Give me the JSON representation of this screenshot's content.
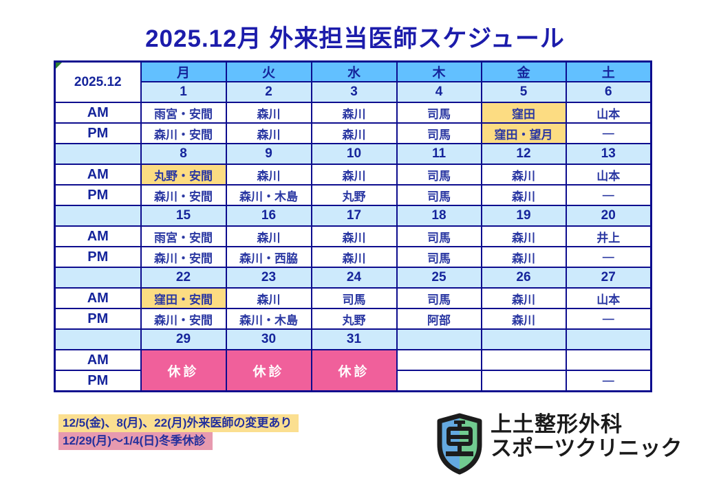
{
  "title": "2025.12月 外来担当医師スケジュール",
  "schedule": {
    "month_label": "2025.12",
    "day_headers": [
      "月",
      "火",
      "水",
      "木",
      "金",
      "土"
    ],
    "row_labels": {
      "am": "AM",
      "pm": "PM"
    },
    "closed_label": "休診",
    "weeks": [
      {
        "dates": [
          "1",
          "2",
          "3",
          "4",
          "5",
          "6"
        ],
        "am": [
          "雨宮・安間",
          "森川",
          "森川",
          "司馬",
          "窪田",
          "山本"
        ],
        "pm": [
          "森川・安間",
          "森川",
          "森川",
          "司馬",
          "窪田・望月",
          "―"
        ],
        "am_highlight": [
          4
        ],
        "pm_highlight": [
          4
        ]
      },
      {
        "dates": [
          "8",
          "9",
          "10",
          "11",
          "12",
          "13"
        ],
        "am": [
          "丸野・安間",
          "森川",
          "森川",
          "司馬",
          "森川",
          "山本"
        ],
        "pm": [
          "森川・安間",
          "森川・木島",
          "丸野",
          "司馬",
          "森川",
          "―"
        ],
        "am_highlight": [
          0
        ],
        "pm_highlight": []
      },
      {
        "dates": [
          "15",
          "16",
          "17",
          "18",
          "19",
          "20"
        ],
        "am": [
          "雨宮・安間",
          "森川",
          "森川",
          "司馬",
          "森川",
          "井上"
        ],
        "pm": [
          "森川・安間",
          "森川・西脇",
          "森川",
          "司馬",
          "森川",
          "―"
        ],
        "am_highlight": [],
        "pm_highlight": []
      },
      {
        "dates": [
          "22",
          "23",
          "24",
          "25",
          "26",
          "27"
        ],
        "am": [
          "窪田・安間",
          "森川",
          "司馬",
          "司馬",
          "森川",
          "山本"
        ],
        "pm": [
          "森川・安間",
          "森川・木島",
          "丸野",
          "阿部",
          "森川",
          "―"
        ],
        "am_highlight": [
          0
        ],
        "pm_highlight": []
      },
      {
        "dates": [
          "29",
          "30",
          "31",
          "",
          "",
          ""
        ],
        "closed_columns": [
          0,
          1,
          2
        ],
        "am": [
          "",
          "",
          "",
          "",
          "",
          ""
        ],
        "pm": [
          "",
          "",
          "",
          "",
          "",
          "―"
        ],
        "am_highlight": [],
        "pm_highlight": []
      }
    ]
  },
  "notes": [
    {
      "text": "12/5(金)、8(月)、22(月)外来医師の変更あり",
      "color": "#fbdf90"
    },
    {
      "text": "12/29(月)～1/4(日)冬季休診",
      "color": "#e79aaf"
    }
  ],
  "logo": {
    "line1": "上土整形外科",
    "line2": "スポーツクリニック",
    "shield_icon": "shield-icon"
  },
  "colors": {
    "title_navy": "#1c1cab",
    "border_navy": "#0c0c8e",
    "day_header_blue": "#62c0ff",
    "date_row_blue": "#cdeafc",
    "highlight_yellow": "#fcdc82",
    "closed_pink": "#f0609b",
    "note_yellow": "#fbdf90",
    "note_pink": "#e79aaf",
    "shield_blue": "#64a9e0",
    "shield_green": "#71cb90"
  }
}
